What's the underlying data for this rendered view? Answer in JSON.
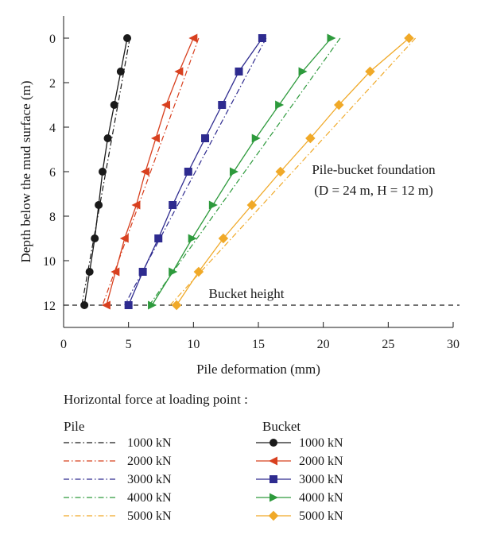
{
  "chart_data": {
    "type": "line",
    "xlabel": "Pile deformation (mm)",
    "ylabel": "Depth below the mud surface (m)",
    "xlim": [
      0,
      30
    ],
    "ylim": [
      0,
      12
    ],
    "y_inverted": true,
    "x_ticks": [
      "0",
      "5",
      "10",
      "15",
      "20",
      "25",
      "30"
    ],
    "y_ticks": [
      "0",
      "2",
      "4",
      "6",
      "8",
      "10",
      "12"
    ],
    "annotation_title": "Pile-bucket foundation",
    "annotation_params": "(D = 24 m, H = 12 m)",
    "reference_line": {
      "label": "Bucket height",
      "depth": 12
    },
    "legend_heading": "Horizontal force at loading point :",
    "legend_group_pile": "Pile",
    "legend_group_bucket": "Bucket",
    "colors": {
      "1000 kN": "#1a1a1a",
      "2000 kN": "#d8401f",
      "3000 kN": "#2e2b8f",
      "4000 kN": "#2d9a3c",
      "5000 kN": "#f0a928"
    },
    "pile_depths": [
      0,
      12
    ],
    "bucket_depths": [
      0,
      1.5,
      3,
      4.5,
      6,
      7.5,
      9,
      10.5,
      12
    ],
    "series": [
      {
        "group": "pile",
        "name": "1000 kN",
        "x": [
          5.1,
          1.4
        ]
      },
      {
        "group": "pile",
        "name": "2000 kN",
        "x": [
          10.4,
          3.0
        ]
      },
      {
        "group": "pile",
        "name": "3000 kN",
        "x": [
          15.6,
          4.7
        ]
      },
      {
        "group": "pile",
        "name": "4000 kN",
        "x": [
          21.3,
          6.6
        ]
      },
      {
        "group": "pile",
        "name": "5000 kN",
        "x": [
          27.1,
          8.2
        ]
      },
      {
        "group": "bucket",
        "name": "1000 kN",
        "marker": "circle",
        "x": [
          4.9,
          4.4,
          3.9,
          3.4,
          3.0,
          2.7,
          2.4,
          2.0,
          1.6
        ]
      },
      {
        "group": "bucket",
        "name": "2000 kN",
        "marker": "triangle-left",
        "x": [
          10.0,
          8.9,
          7.9,
          7.1,
          6.3,
          5.6,
          4.7,
          4.0,
          3.3
        ]
      },
      {
        "group": "bucket",
        "name": "3000 kN",
        "marker": "square",
        "x": [
          15.3,
          13.5,
          12.2,
          10.9,
          9.6,
          8.4,
          7.3,
          6.1,
          5.0
        ]
      },
      {
        "group": "bucket",
        "name": "4000 kN",
        "marker": "triangle-right",
        "x": [
          20.6,
          18.4,
          16.6,
          14.8,
          13.1,
          11.5,
          9.9,
          8.4,
          6.8
        ]
      },
      {
        "group": "bucket",
        "name": "5000 kN",
        "marker": "diamond",
        "x": [
          26.6,
          23.6,
          21.2,
          19.0,
          16.7,
          14.5,
          12.3,
          10.4,
          8.7
        ]
      }
    ]
  }
}
